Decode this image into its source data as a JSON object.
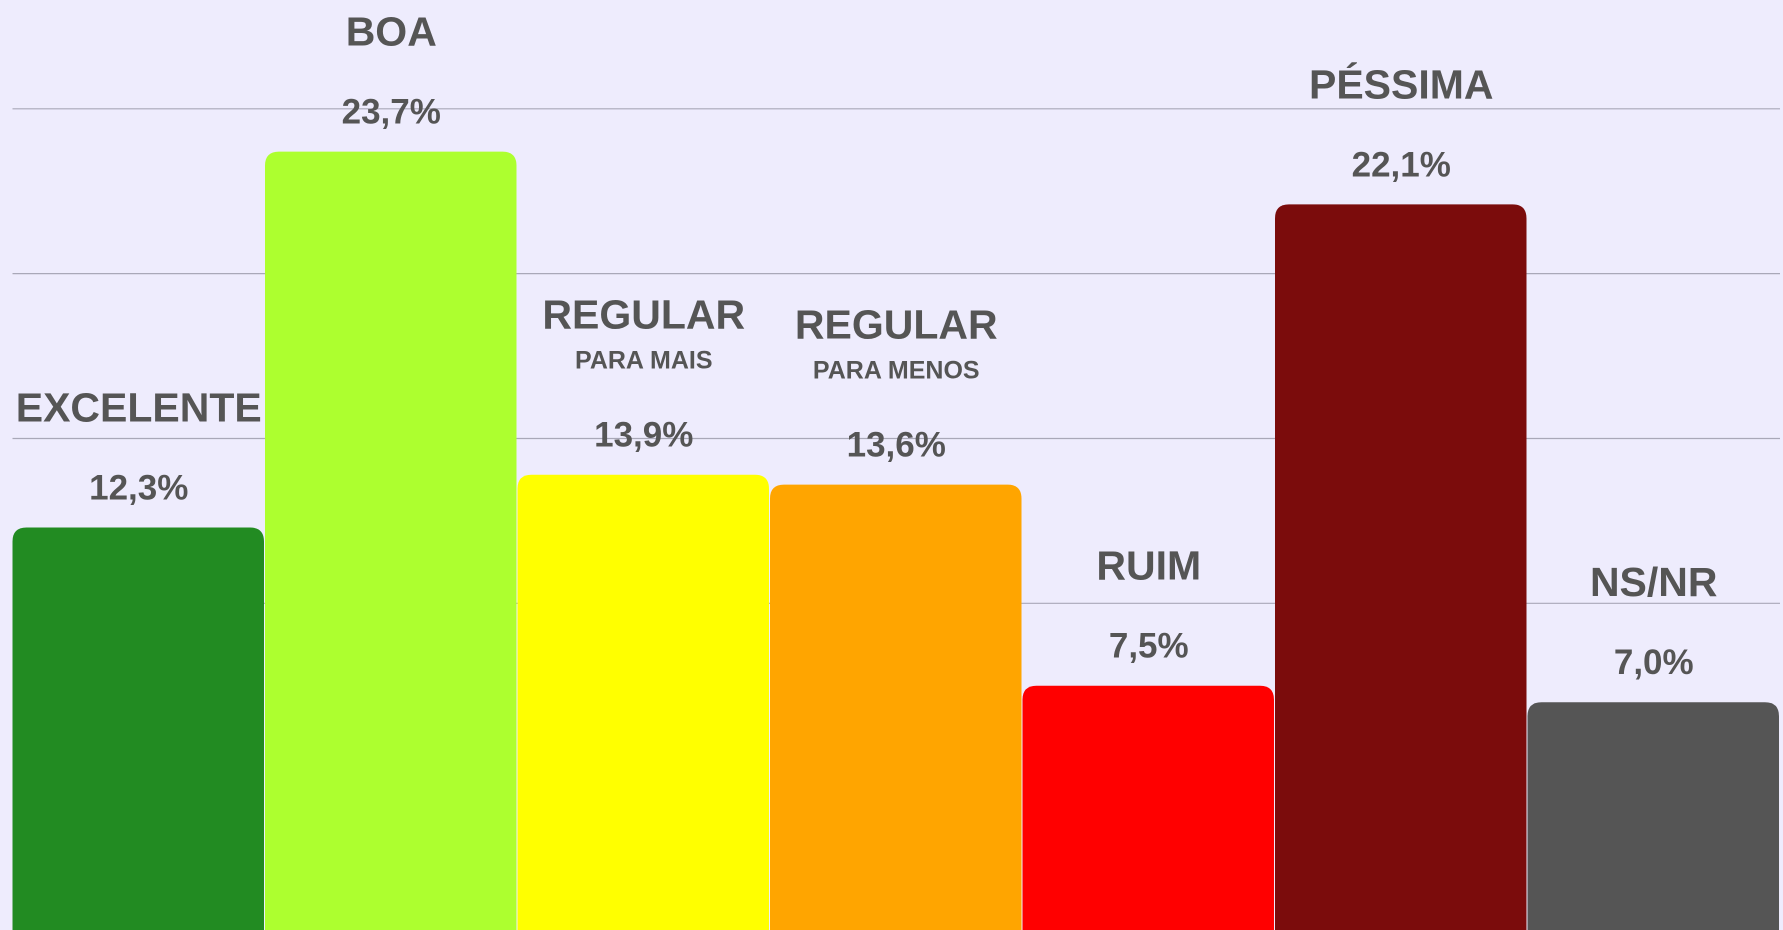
{
  "chart_data": {
    "type": "bar",
    "categories": [
      "EXCELENTE",
      "BOA",
      "REGULAR",
      "REGULAR",
      "RUIM",
      "PÉSSIMA",
      "NS/NR"
    ],
    "sublabels": [
      null,
      null,
      "PARA MAIS",
      "PARA MENOS",
      null,
      null,
      null
    ],
    "values": [
      12.3,
      23.7,
      13.9,
      13.6,
      7.5,
      22.1,
      7.0
    ],
    "value_labels": [
      "12,3%",
      "23,7%",
      "13,9%",
      "13,6%",
      "7,5%",
      "22,1%",
      "7,0%"
    ],
    "colors": [
      "#228b22",
      "#adff2f",
      "#ffff00",
      "#ffa500",
      "#ff0000",
      "#7b0c0c",
      "#555555"
    ],
    "ylim": [
      0,
      28.3
    ],
    "yticks": [
      10,
      15,
      20,
      25
    ],
    "grid": true
  }
}
